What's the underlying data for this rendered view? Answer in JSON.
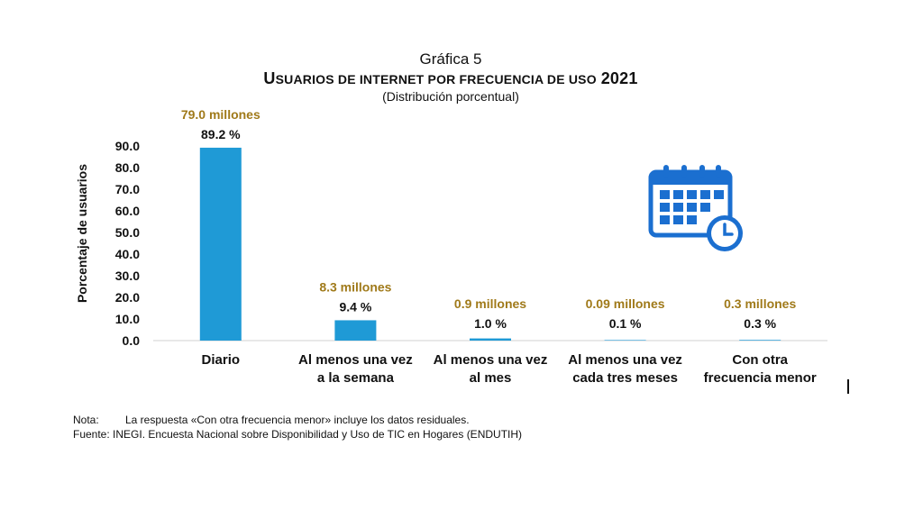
{
  "title": {
    "line1": "Gráfica 5",
    "line2_first": "U",
    "line2_rest": "SUARIOS DE INTERNET POR FRECUENCIA DE USO",
    "line2_year": "2021",
    "line3": "(Distribución porcentual)"
  },
  "chart_data": {
    "type": "bar",
    "categories": [
      [
        "Diario"
      ],
      [
        "Al menos una vez",
        "a la semana"
      ],
      [
        "Al menos una vez",
        "al mes"
      ],
      [
        "Al menos una vez",
        "cada tres meses"
      ],
      [
        "Con otra",
        "frecuencia menor"
      ]
    ],
    "values": [
      89.2,
      9.4,
      1.0,
      0.1,
      0.3
    ],
    "value_labels": [
      "89.2 %",
      "9.4 %",
      "1.0 %",
      "0.1 %",
      "0.3 %"
    ],
    "secondary_labels": [
      "79.0 millones",
      "8.3 millones",
      "0.9 millones",
      "0.09 millones",
      "0.3 millones"
    ],
    "ylabel": "Porcentaje de usuarios",
    "yticks": [
      "0.0",
      "10.0",
      "20.0",
      "30.0",
      "40.0",
      "50.0",
      "60.0",
      "70.0",
      "80.0",
      "90.0"
    ],
    "ylim": [
      0,
      90
    ],
    "grid": false,
    "colors": {
      "bar": "#1f9ad6",
      "secondary_label": "#a07a1a",
      "icon": "#1b6fd0"
    }
  },
  "notes": {
    "nota_label": "Nota:",
    "nota_text": "La respuesta «Con otra frecuencia menor» incluye los datos residuales.",
    "fuente_label": "Fuente:",
    "fuente_text": "INEGI. Encuesta Nacional sobre Disponibilidad y Uso de TIC en Hogares (ENDUTIH)"
  },
  "icon": "calendar-clock-icon"
}
